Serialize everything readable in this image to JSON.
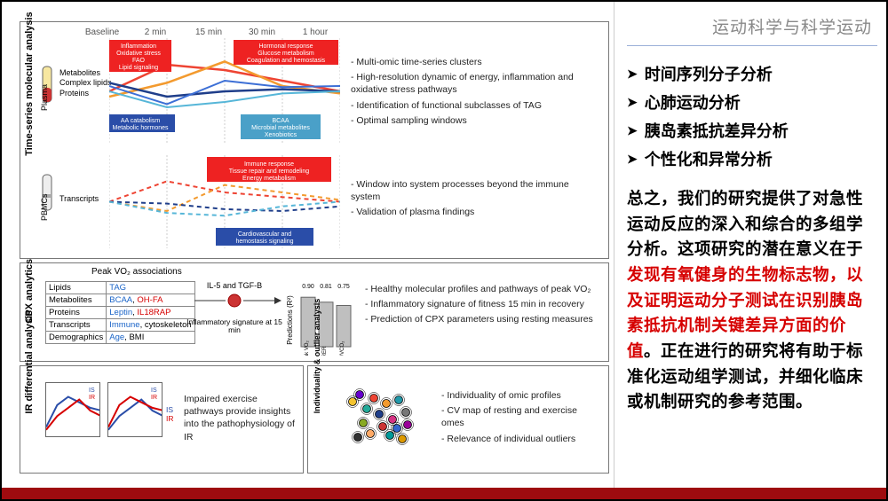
{
  "header": {
    "title_cn": "运动科学与科学运动"
  },
  "bullets": [
    "时间序列分子分析",
    "心肺运动分析",
    "胰岛素抵抗差异分析",
    "个性化和异常分析"
  ],
  "body": {
    "pre": "总之，我们的研究提供了对急性运动反应的深入和综合的多组学分析。这项研究的潜在意义在于",
    "red": "发现有氧健身的生物标志物，以及证明运动分子测试在识别胰岛素抵抗机制关键差异方面的价值",
    "post": "。正在进行的研究将有助于标准化运动组学测试，并细化临床或机制研究的参考范围。"
  },
  "fig": {
    "timepoints": [
      "Baseline",
      "2 min",
      "15 min",
      "30 min",
      "1 hour"
    ],
    "sections": {
      "ts": {
        "vlabel": "Time-series molecular analysis",
        "plasma_label": "Plasma",
        "pbmc_label": "PBMCs",
        "layers": [
          "Metabolites",
          "Complex lipids",
          "Proteins"
        ],
        "transcripts": "Transcripts",
        "box_labels": {
          "inflam": "Inflammation\nOxidative stress\nFAO\nLipid signaling",
          "hormonal": "Hormonal response\nGlucose metabolism\nCoagulation and hemostasis",
          "aa": "AA catabolism\nMetabolic hormones",
          "bcaa": "BCAA\nMicrobial metabolites\nXenobiotics",
          "immune": "Immune response\nTissue repair and remodeling\nEnergy metabolism",
          "cardio": "Cardiovascular and\nhemostasis signaling"
        },
        "desc_plasma": [
          "Multi-omic time-series clusters",
          "High-resolution dynamic of energy, inflammation and oxidative stress pathways",
          "Identification of functional subclasses of TAG",
          "Optimal sampling windows"
        ],
        "desc_pbmc": [
          "Window into system processes beyond the immune system",
          "Validation of plasma findings"
        ],
        "chart": {
          "type": "line",
          "x": [
            0,
            1,
            2,
            3,
            4
          ],
          "plasma_series": {
            "red_solid": {
              "y": [
                50,
                75,
                70,
                60,
                50
              ],
              "color": "#e43",
              "width": 2.5
            },
            "orange_solid": {
              "y": [
                45,
                58,
                78,
                55,
                48
              ],
              "color": "#f39a2e",
              "width": 2.5
            },
            "navy_solid": {
              "y": [
                58,
                45,
                50,
                52,
                50
              ],
              "color": "#1f3e8a",
              "width": 2.5
            },
            "blue_solid": {
              "y": [
                55,
                38,
                60,
                54,
                55
              ],
              "color": "#3c6fd6",
              "width": 2
            },
            "cyan_solid": {
              "y": [
                50,
                35,
                40,
                48,
                50
              ],
              "color": "#56b6d8",
              "width": 2
            }
          },
          "pbmc_series": {
            "red_dash": {
              "y": [
                50,
                72,
                60,
                55,
                50
              ],
              "color": "#e43",
              "width": 2
            },
            "orange_dash": {
              "y": [
                50,
                40,
                68,
                60,
                52
              ],
              "color": "#f39a2e",
              "width": 2
            },
            "navy_dash": {
              "y": [
                50,
                48,
                42,
                40,
                45
              ],
              "color": "#1f3e8a",
              "width": 2
            },
            "cyan_dash": {
              "y": [
                50,
                38,
                35,
                45,
                50
              ],
              "color": "#56b6d8",
              "width": 2
            }
          }
        }
      },
      "cpx": {
        "vlabel": "CPX analytics",
        "title": "Peak VO₂ associations",
        "rows": [
          [
            "Lipids",
            "TAG"
          ],
          [
            "Metabolites",
            "BCAA, OH-FA"
          ],
          [
            "Proteins",
            "Leptin, IL18RAP"
          ],
          [
            "Transcripts",
            "Immune, cytoskeleton"
          ],
          [
            "Demographics",
            "Age, BMI"
          ]
        ],
        "row_colors": [
          "#1a64c8",
          "#1a64c8",
          "#1a64c8",
          "#1a64c8",
          "#1a64c8"
        ],
        "row_accent": [
          "#000",
          "#d60000",
          "#d60000",
          "#000",
          "#000"
        ],
        "middle_label_top": "IL-5 and TGF-B",
        "middle_label_bot": "Inflammatory signature at 15 min",
        "bars_label": "Predictions (R²)",
        "bars": {
          "labels": [
            "peak VO₂",
            "RER",
            "VE/VCO₂"
          ],
          "values": [
            0.9,
            0.81,
            0.75
          ],
          "color": "#bfbfbf"
        },
        "desc": [
          "Healthy molecular profiles and pathways of peak VO₂",
          "Inflammatory signature of fitness 15 min in recovery",
          "Prediction of CPX parameters using resting measures"
        ]
      },
      "ir": {
        "vlabel": "IR differential analysis",
        "legend": [
          "IS",
          "IR"
        ],
        "legend_colors": [
          "#2a4da8",
          "#d60000"
        ],
        "caption": "Impaired exercise pathways provide insights into the pathophysiology of IR",
        "mini_chart": {
          "type": "line",
          "is_y": [
            20,
            60,
            75,
            65,
            55,
            50
          ],
          "ir_y": [
            15,
            40,
            55,
            70,
            50,
            40
          ]
        }
      },
      "ind": {
        "vlabel": "Individuality & outlier analysis",
        "desc": [
          "Individuality of omic profiles",
          "CV map of resting and exercise omes",
          "Relevance of individual outliers"
        ],
        "scatter": {
          "type": "scatter",
          "points": [
            {
              "x": 10,
              "y": 20,
              "c": "#f4c430"
            },
            {
              "x": 18,
              "y": 12,
              "c": "#60c"
            },
            {
              "x": 26,
              "y": 28,
              "c": "#2a9"
            },
            {
              "x": 34,
              "y": 16,
              "c": "#e43"
            },
            {
              "x": 40,
              "y": 34,
              "c": "#1f3e8a"
            },
            {
              "x": 48,
              "y": 22,
              "c": "#f39a2e"
            },
            {
              "x": 55,
              "y": 40,
              "c": "#d63384"
            },
            {
              "x": 62,
              "y": 18,
              "c": "#29a"
            },
            {
              "x": 70,
              "y": 32,
              "c": "#777"
            },
            {
              "x": 22,
              "y": 44,
              "c": "#8a2"
            },
            {
              "x": 44,
              "y": 48,
              "c": "#c33"
            },
            {
              "x": 60,
              "y": 50,
              "c": "#36c"
            },
            {
              "x": 30,
              "y": 56,
              "c": "#fa6"
            },
            {
              "x": 52,
              "y": 58,
              "c": "#099"
            },
            {
              "x": 72,
              "y": 46,
              "c": "#909"
            },
            {
              "x": 16,
              "y": 60,
              "c": "#333"
            },
            {
              "x": 66,
              "y": 62,
              "c": "#d90"
            }
          ]
        }
      }
    }
  },
  "colors": {
    "red": "#d60000",
    "navy": "#1f3e8a",
    "orange": "#f39a2e",
    "cyan": "#56b6d8",
    "grey": "#888"
  }
}
